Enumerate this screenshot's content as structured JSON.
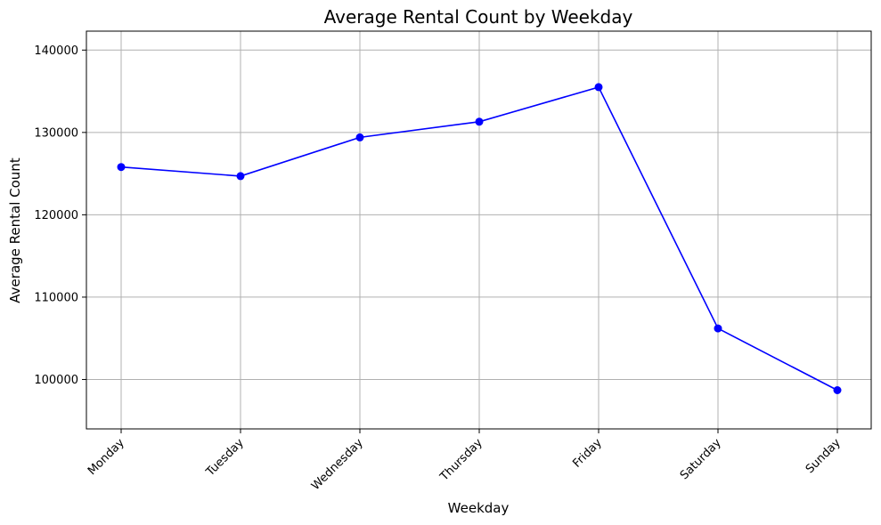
{
  "chart_data": {
    "type": "line",
    "title": "Average Rental Count by Weekday",
    "xlabel": "Weekday",
    "ylabel": "Average Rental Count",
    "categories": [
      "Monday",
      "Tuesday",
      "Wednesday",
      "Thursday",
      "Friday",
      "Saturday",
      "Sunday"
    ],
    "series": [
      {
        "values": [
          125800,
          124700,
          129400,
          131300,
          135500,
          106200,
          98700
        ],
        "color": "#0000ff",
        "marker": "circle"
      }
    ],
    "ylim": [
      94000,
      142300
    ],
    "yticks": [
      100000,
      110000,
      120000,
      130000,
      140000
    ],
    "ytick_labels": [
      "100000",
      "110000",
      "120000",
      "130000",
      "140000"
    ],
    "grid": true,
    "legend": "none"
  }
}
